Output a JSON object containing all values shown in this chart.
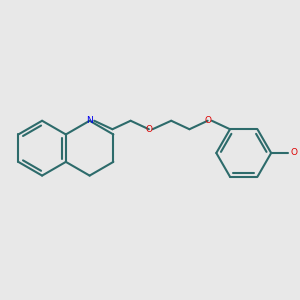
{
  "background_color": "#e8e8e8",
  "bond_color": "#2d6b6b",
  "N_color": "#0000ee",
  "O_color": "#dd0000",
  "line_width": 1.5,
  "fig_size": [
    3.0,
    3.0
  ],
  "dpi": 100,
  "xlim": [
    -0.15,
    3.0
  ],
  "ylim": [
    -0.6,
    0.8
  ]
}
